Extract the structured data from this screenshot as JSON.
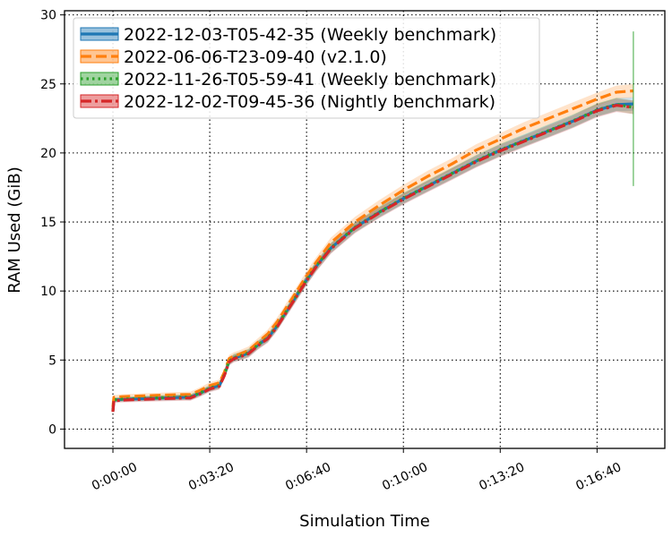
{
  "chart_data": {
    "type": "line",
    "xlabel": "Simulation Time",
    "ylabel": "RAM Used (GiB)",
    "xlim": [
      -100,
      1140
    ],
    "ylim": [
      -1.4,
      30.3
    ],
    "x_ticks": [
      {
        "value": 0,
        "label": "0:00:00"
      },
      {
        "value": 200,
        "label": "0:03:20"
      },
      {
        "value": 400,
        "label": "0:06:40"
      },
      {
        "value": 600,
        "label": "0:10:00"
      },
      {
        "value": 800,
        "label": "0:13:20"
      },
      {
        "value": 1000,
        "label": "0:16:40"
      }
    ],
    "y_ticks": [
      {
        "value": 0,
        "label": "0"
      },
      {
        "value": 5,
        "label": "5"
      },
      {
        "value": 10,
        "label": "10"
      },
      {
        "value": 15,
        "label": "15"
      },
      {
        "value": 20,
        "label": "20"
      },
      {
        "value": 25,
        "label": "25"
      },
      {
        "value": 30,
        "label": "30"
      }
    ],
    "grid": true,
    "legend": "top-left",
    "series": [
      {
        "name": "2022-12-03-T05-42-35 (Weekly benchmark)",
        "color": "#1f77b4",
        "line_style": "solid",
        "x": [
          0,
          2,
          20,
          60,
          100,
          150,
          160,
          180,
          200,
          220,
          230,
          240,
          250,
          260,
          280,
          300,
          320,
          340,
          360,
          380,
          400,
          420,
          450,
          500,
          550,
          600,
          650,
          700,
          750,
          800,
          850,
          900,
          950,
          1000,
          1040,
          1075
        ],
        "y": [
          1.3,
          2.1,
          2.15,
          2.2,
          2.25,
          2.3,
          2.3,
          2.6,
          2.95,
          3.15,
          3.9,
          4.9,
          5.15,
          5.25,
          5.5,
          6.1,
          6.6,
          7.5,
          8.6,
          9.7,
          10.8,
          11.8,
          13.1,
          14.6,
          15.7,
          16.7,
          17.6,
          18.5,
          19.4,
          20.2,
          20.9,
          21.6,
          22.3,
          23.1,
          23.5,
          23.55
        ]
      },
      {
        "name": "2022-06-06-T23-09-40 (v2.1.0)",
        "color": "#ff7f0e",
        "line_style": "dashed",
        "x": [
          0,
          2,
          20,
          60,
          100,
          150,
          160,
          180,
          200,
          220,
          230,
          240,
          250,
          260,
          280,
          300,
          320,
          340,
          360,
          380,
          400,
          420,
          450,
          500,
          550,
          600,
          650,
          700,
          750,
          800,
          850,
          900,
          950,
          1000,
          1040,
          1075
        ],
        "y": [
          1.6,
          2.3,
          2.35,
          2.4,
          2.45,
          2.5,
          2.5,
          2.8,
          3.15,
          3.35,
          4.1,
          5.1,
          5.3,
          5.4,
          5.7,
          6.3,
          6.9,
          7.8,
          8.9,
          10.0,
          11.1,
          12.1,
          13.5,
          15.0,
          16.2,
          17.3,
          18.3,
          19.2,
          20.2,
          21.0,
          21.8,
          22.5,
          23.2,
          23.9,
          24.4,
          24.5
        ]
      },
      {
        "name": "2022-11-26-T05-59-41 (Weekly benchmark)",
        "color": "#2ca02c",
        "line_style": "dotted",
        "x": [
          0,
          2,
          20,
          60,
          100,
          150,
          160,
          180,
          200,
          220,
          230,
          240,
          250,
          260,
          280,
          300,
          320,
          340,
          360,
          380,
          400,
          420,
          450,
          500,
          550,
          600,
          650,
          700,
          750,
          800,
          850,
          900,
          950,
          1000,
          1040,
          1075
        ],
        "y": [
          1.35,
          2.12,
          2.17,
          2.22,
          2.27,
          2.32,
          2.32,
          2.62,
          2.97,
          3.17,
          3.92,
          4.92,
          5.17,
          5.27,
          5.52,
          6.12,
          6.62,
          7.52,
          8.62,
          9.72,
          10.82,
          11.82,
          13.12,
          14.62,
          15.72,
          16.72,
          17.62,
          18.52,
          19.42,
          20.22,
          20.92,
          21.62,
          22.32,
          23.12,
          23.52,
          23.3
        ],
        "error_bar": {
          "x": 1075,
          "low": 17.6,
          "high": 28.8
        }
      },
      {
        "name": "2022-12-02-T09-45-36 (Nightly benchmark)",
        "color": "#d62728",
        "line_style": "dashdot",
        "x": [
          0,
          2,
          20,
          60,
          100,
          150,
          160,
          180,
          200,
          220,
          230,
          240,
          250,
          260,
          280,
          300,
          320,
          340,
          360,
          380,
          400,
          420,
          450,
          500,
          550,
          600,
          650,
          700,
          750,
          800,
          850,
          900,
          950,
          1000,
          1040,
          1075
        ],
        "y": [
          1.25,
          2.05,
          2.1,
          2.15,
          2.2,
          2.25,
          2.25,
          2.55,
          2.9,
          3.1,
          3.85,
          4.85,
          5.1,
          5.2,
          5.45,
          6.05,
          6.55,
          7.45,
          8.55,
          9.65,
          10.75,
          11.75,
          13.05,
          14.55,
          15.65,
          16.65,
          17.55,
          18.45,
          19.35,
          20.15,
          20.85,
          21.55,
          22.25,
          23.05,
          23.45,
          23.3
        ]
      }
    ]
  }
}
